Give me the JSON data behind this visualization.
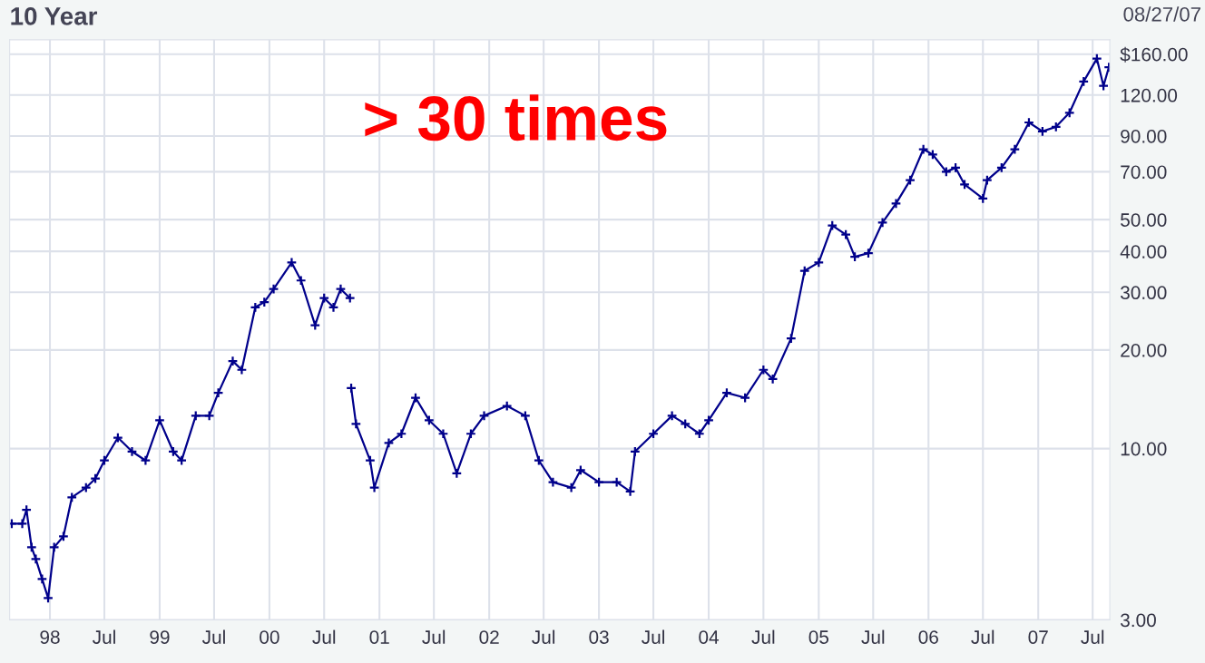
{
  "chart_data": {
    "type": "line",
    "title": "10 Year",
    "subtitle": "08/27/07",
    "annotations": [
      "> 30 times"
    ],
    "x": [
      "1997-08-27",
      "1997-10-01",
      "1997-10-15",
      "1997-11-01",
      "1997-11-15",
      "1997-12-06",
      "1997-12-26",
      "1998-01-15",
      "1998-02-15",
      "1998-03-15",
      "1998-05-01",
      "1998-06-01",
      "1998-07-01",
      "1998-08-15",
      "1998-10-01",
      "1998-11-15",
      "1999-01-01",
      "1999-02-15",
      "1999-03-15",
      "1999-05-01",
      "1999-06-15",
      "1999-07-15",
      "1999-09-01",
      "1999-10-01",
      "1999-11-15",
      "1999-12-15",
      "2000-01-15",
      "2000-03-15",
      "2000-04-15",
      "2000-06-01",
      "2000-07-01",
      "2000-08-01",
      "2000-08-25",
      "2000-09-25",
      "2000-09-27",
      "2000-09-29",
      "2000-10-15",
      "2000-12-01",
      "2000-12-15",
      "2001-02-01",
      "2001-03-15",
      "2001-05-01",
      "2001-06-15",
      "2001-08-01",
      "2001-09-15",
      "2001-11-01",
      "2001-12-15",
      "2002-03-01",
      "2002-05-01",
      "2002-06-15",
      "2002-08-01",
      "2002-10-01",
      "2002-11-01",
      "2003-01-01",
      "2003-03-01",
      "2003-04-15",
      "2003-05-01",
      "2003-07-01",
      "2003-09-01",
      "2003-10-15",
      "2003-12-01",
      "2004-01-01",
      "2004-03-01",
      "2004-05-01",
      "2004-07-01",
      "2004-08-01",
      "2004-10-01",
      "2004-11-15",
      "2005-01-01",
      "2005-02-15",
      "2005-04-01",
      "2005-05-01",
      "2005-06-15",
      "2005-08-01",
      "2005-09-15",
      "2005-11-01",
      "2005-12-15",
      "2006-01-15",
      "2006-03-01",
      "2006-04-01",
      "2006-05-01",
      "2006-07-01",
      "2006-07-15",
      "2006-09-01",
      "2006-10-15",
      "2006-12-01",
      "2007-01-15",
      "2007-03-01",
      "2007-04-15",
      "2007-06-01",
      "2007-07-15",
      "2007-08-06",
      "2007-08-24"
    ],
    "series": [
      {
        "color": "#00008b",
        "values": [
          5.9,
          5.9,
          6.5,
          5.0,
          4.6,
          4.0,
          3.5,
          5.0,
          5.4,
          7.1,
          7.6,
          8.1,
          9.2,
          10.8,
          9.8,
          9.2,
          12.2,
          9.8,
          9.2,
          12.6,
          12.6,
          14.8,
          18.5,
          17.4,
          27,
          28,
          30.7,
          37,
          32.6,
          23.8,
          28.8,
          27,
          30.7,
          28.8,
          null,
          15.3,
          11.9,
          9.2,
          7.6,
          10.4,
          11.1,
          14.3,
          12.2,
          11.1,
          8.4,
          11.1,
          12.6,
          13.5,
          12.6,
          9.2,
          7.9,
          7.6,
          8.6,
          7.9,
          7.9,
          7.4,
          9.8,
          11.1,
          12.6,
          11.9,
          11.1,
          12.2,
          14.8,
          14.3,
          17.4,
          16.3,
          21.7,
          34.9,
          37,
          48,
          45,
          38.5,
          39.5,
          49,
          56,
          66,
          82,
          79,
          70,
          72,
          64,
          58,
          66,
          72,
          82,
          99,
          93,
          96,
          106,
          132,
          155,
          128,
          146
        ]
      }
    ],
    "log": "y",
    "marker": "cross",
    "grid": true,
    "xlim": [
      "1997-08-20",
      "2007-08-27"
    ],
    "xticks": [
      {
        "value": "1998-01-01",
        "label": "98"
      },
      {
        "value": "1998-07-01",
        "label": "Jul"
      },
      {
        "value": "1999-01-01",
        "label": "99"
      },
      {
        "value": "1999-07-01",
        "label": "Jul"
      },
      {
        "value": "2000-01-01",
        "label": "00"
      },
      {
        "value": "2000-07-01",
        "label": "Jul"
      },
      {
        "value": "2001-01-01",
        "label": "01"
      },
      {
        "value": "2001-07-01",
        "label": "Jul"
      },
      {
        "value": "2002-01-01",
        "label": "02"
      },
      {
        "value": "2002-07-01",
        "label": "Jul"
      },
      {
        "value": "2003-01-01",
        "label": "03"
      },
      {
        "value": "2003-07-01",
        "label": "Jul"
      },
      {
        "value": "2004-01-01",
        "label": "04"
      },
      {
        "value": "2004-07-01",
        "label": "Jul"
      },
      {
        "value": "2005-01-01",
        "label": "05"
      },
      {
        "value": "2005-07-01",
        "label": "Jul"
      },
      {
        "value": "2006-01-01",
        "label": "06"
      },
      {
        "value": "2006-07-01",
        "label": "Jul"
      },
      {
        "value": "2007-01-01",
        "label": "07"
      },
      {
        "value": "2007-07-01",
        "label": "Jul"
      }
    ],
    "ylim": [
      3,
      177
    ],
    "yticks": [
      {
        "value": 3,
        "label": "3.00"
      },
      {
        "value": 10,
        "label": "10.00"
      },
      {
        "value": 20,
        "label": "20.00"
      },
      {
        "value": 30,
        "label": "30.00"
      },
      {
        "value": 40,
        "label": "40.00"
      },
      {
        "value": 50,
        "label": "50.00"
      },
      {
        "value": 70,
        "label": "70.00"
      },
      {
        "value": 90,
        "label": "90.00"
      },
      {
        "value": 120,
        "label": "120.00"
      },
      {
        "value": 160,
        "label": "$160.00"
      }
    ]
  }
}
